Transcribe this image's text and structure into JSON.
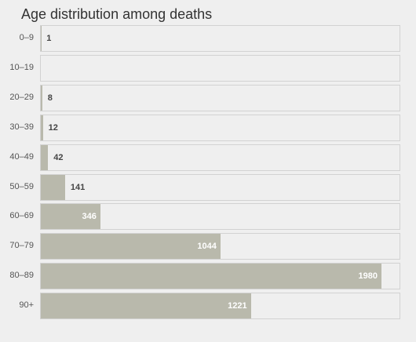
{
  "chart_data": {
    "type": "bar",
    "orientation": "horizontal",
    "title": "Age distribution among deaths",
    "categories": [
      "0–9",
      "10–19",
      "20–29",
      "30–39",
      "40–49",
      "50–59",
      "60–69",
      "70–79",
      "80–89",
      "90+"
    ],
    "values": [
      1,
      0,
      8,
      12,
      42,
      141,
      346,
      1044,
      1980,
      1221
    ],
    "value_labels": [
      "1",
      "",
      "8",
      "12",
      "42",
      "141",
      "346",
      "1044",
      "1980",
      "1221"
    ],
    "xlim": [
      0,
      2085
    ],
    "grid": false,
    "legend": "none",
    "colors": {
      "bar": "#b9b9ac",
      "track": "#efefef",
      "track_border": "#d2d2d2"
    }
  }
}
